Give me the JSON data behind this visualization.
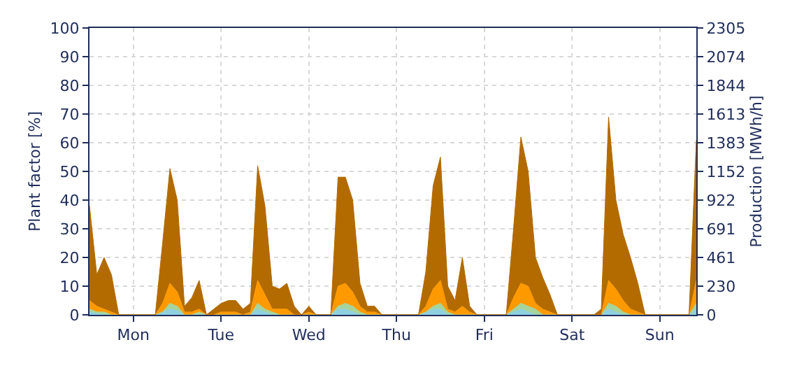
{
  "chart_data": {
    "type": "area",
    "stacked": true,
    "ylabel": "Plant factor [%]",
    "y2label": "Production [MWh/h]",
    "categories": [
      null,
      null,
      null,
      null,
      null,
      null,
      "Mon",
      null,
      null,
      null,
      null,
      null,
      null,
      null,
      null,
      null,
      null,
      null,
      "Tue",
      null,
      null,
      null,
      null,
      null,
      null,
      null,
      null,
      null,
      null,
      null,
      "Wed",
      null,
      null,
      null,
      null,
      null,
      null,
      null,
      null,
      null,
      null,
      null,
      "Thu",
      null,
      null,
      null,
      null,
      null,
      null,
      null,
      null,
      null,
      null,
      null,
      "Fri",
      null,
      null,
      null,
      null,
      null,
      null,
      null,
      null,
      null,
      null,
      null,
      "Sat",
      null,
      null,
      null,
      null,
      null,
      null,
      null,
      null,
      null,
      null,
      null,
      "Sun",
      null,
      null,
      null,
      null,
      null
    ],
    "series": [
      {
        "color": "#8fd0e0",
        "values": [
          1,
          0.5,
          0,
          0,
          0,
          0,
          0,
          0,
          0,
          0,
          1,
          2,
          1.5,
          0,
          0,
          0,
          0,
          0,
          0,
          0,
          0,
          0,
          0,
          2,
          1,
          0,
          0,
          0,
          0,
          0,
          0,
          0,
          0,
          0,
          2,
          2,
          1,
          0,
          0,
          0,
          0,
          0,
          0,
          0,
          0,
          0,
          1,
          2,
          2,
          0,
          0,
          0,
          0,
          0,
          0,
          0,
          0,
          0,
          1,
          2,
          1,
          0,
          0,
          0,
          0,
          0,
          0,
          0,
          0,
          0,
          0,
          2,
          1,
          0,
          0,
          0,
          0,
          0,
          0,
          0,
          0,
          0,
          0,
          2
        ]
      },
      {
        "color": "#a6d49a",
        "values": [
          1,
          0.5,
          1,
          0,
          0,
          0,
          0,
          0,
          0,
          0,
          0,
          2,
          1.5,
          0,
          0,
          1,
          0,
          0,
          0,
          0,
          0,
          0,
          0,
          2,
          1,
          1,
          0,
          0,
          0,
          0,
          0,
          0,
          0,
          0,
          1,
          2,
          2,
          1,
          0,
          0,
          0,
          0,
          0,
          0,
          0,
          0,
          0,
          1,
          2,
          1,
          0,
          0,
          0,
          0,
          0,
          0,
          0,
          0,
          1,
          2,
          2,
          2,
          0,
          0,
          0,
          0,
          0,
          0,
          0,
          0,
          0,
          2,
          2,
          1,
          0,
          0,
          0,
          0,
          0,
          0,
          0,
          0,
          0,
          2
        ]
      },
      {
        "color": "#ff9900",
        "values": [
          3,
          2,
          1,
          1,
          0,
          0,
          0,
          0,
          0,
          0,
          3,
          7,
          5,
          1,
          1,
          1,
          0,
          0,
          1,
          1,
          1,
          0,
          1,
          8,
          5,
          1,
          2,
          2,
          0,
          0,
          1,
          0,
          0,
          0,
          7,
          7,
          5,
          2,
          1,
          1,
          0,
          0,
          0,
          0,
          0,
          0,
          2,
          6,
          8,
          1,
          1,
          3,
          1,
          0,
          0,
          0,
          0,
          0,
          4,
          7,
          7,
          2,
          2,
          1,
          0,
          0,
          0,
          0,
          0,
          0,
          0,
          8,
          6,
          4,
          2,
          1,
          0,
          0,
          0,
          0,
          0,
          0,
          0,
          8
        ]
      },
      {
        "color": "#b36b00",
        "values": [
          33,
          11,
          18,
          13,
          0,
          0,
          0,
          0,
          0,
          0,
          21,
          40,
          32,
          2,
          5,
          10,
          0,
          2,
          3,
          4,
          4,
          2,
          3,
          40,
          31,
          8,
          7,
          9,
          3,
          0,
          2,
          0,
          0,
          0,
          38,
          37,
          32,
          8,
          2,
          2,
          0,
          0,
          0,
          0,
          0,
          0,
          12,
          36,
          43,
          8,
          4,
          17,
          2,
          0,
          0,
          0,
          0,
          0,
          24,
          51,
          40,
          16,
          11,
          6,
          0,
          0,
          0,
          0,
          0,
          0,
          2,
          57,
          31,
          23,
          18,
          10,
          0,
          0,
          0,
          0,
          0,
          0,
          0,
          49
        ]
      }
    ],
    "ylim": [
      0,
      100
    ],
    "yticks": [
      0,
      10,
      20,
      30,
      40,
      50,
      60,
      70,
      80,
      90,
      100
    ],
    "y2lim": [
      0,
      2305
    ],
    "y2ticks": [
      0,
      230,
      461,
      691,
      922,
      1152,
      1383,
      1613,
      1844,
      2074,
      2305
    ],
    "grid": true
  }
}
